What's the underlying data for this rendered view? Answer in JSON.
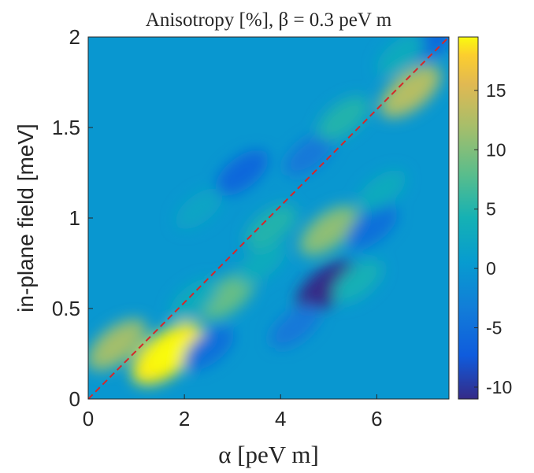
{
  "chart_data": {
    "type": "heatmap",
    "title": "Anisotropy [%], β = 0.3 peV m",
    "xlabel": "α [peV m]",
    "ylabel": "in-plane field [meV]",
    "xlim": [
      0,
      7.5
    ],
    "ylim": [
      0,
      2
    ],
    "x_ticks": [
      0,
      2,
      4,
      6
    ],
    "x_tick_labels": [
      "0",
      "2",
      "4",
      "6"
    ],
    "y_ticks": [
      0,
      0.5,
      1,
      1.5,
      2
    ],
    "y_tick_labels": [
      "0",
      "0.5",
      "1",
      "1.5",
      "2"
    ],
    "colorbar": {
      "colormap": "parula",
      "range": [
        -11,
        19.5
      ],
      "ticks": [
        -10,
        -5,
        0,
        5,
        10,
        15
      ],
      "tick_labels": [
        "-10",
        "-5",
        "0",
        "5",
        "10",
        "15"
      ]
    },
    "diagonal_line": {
      "from": [
        0,
        0
      ],
      "to": [
        7.5,
        2
      ],
      "style": "dashed",
      "color": "#d62728"
    },
    "background_value": 0,
    "features": [
      {
        "x": 1.65,
        "y": 0.25,
        "value": 19
      },
      {
        "x": 0.6,
        "y": 0.3,
        "value": 11
      },
      {
        "x": 2.5,
        "y": 0.28,
        "value": -5
      },
      {
        "x": 2.9,
        "y": 0.57,
        "value": 8
      },
      {
        "x": 2.2,
        "y": 0.55,
        "value": 3
      },
      {
        "x": 3.6,
        "y": 0.75,
        "value": 3
      },
      {
        "x": 3.8,
        "y": 0.95,
        "value": 5
      },
      {
        "x": 4.95,
        "y": 0.62,
        "value": -11
      },
      {
        "x": 4.3,
        "y": 0.4,
        "value": -4
      },
      {
        "x": 5.0,
        "y": 0.93,
        "value": 10
      },
      {
        "x": 5.6,
        "y": 0.65,
        "value": 4
      },
      {
        "x": 5.9,
        "y": 0.95,
        "value": -5
      },
      {
        "x": 3.2,
        "y": 1.25,
        "value": -6
      },
      {
        "x": 4.6,
        "y": 1.35,
        "value": -4
      },
      {
        "x": 6.1,
        "y": 1.15,
        "value": 3
      },
      {
        "x": 5.3,
        "y": 1.55,
        "value": 5
      },
      {
        "x": 6.7,
        "y": 1.7,
        "value": 12
      },
      {
        "x": 7.1,
        "y": 1.98,
        "value": -6
      },
      {
        "x": 6.5,
        "y": 1.9,
        "value": 3
      },
      {
        "x": 2.3,
        "y": 1.05,
        "value": 2
      }
    ]
  }
}
